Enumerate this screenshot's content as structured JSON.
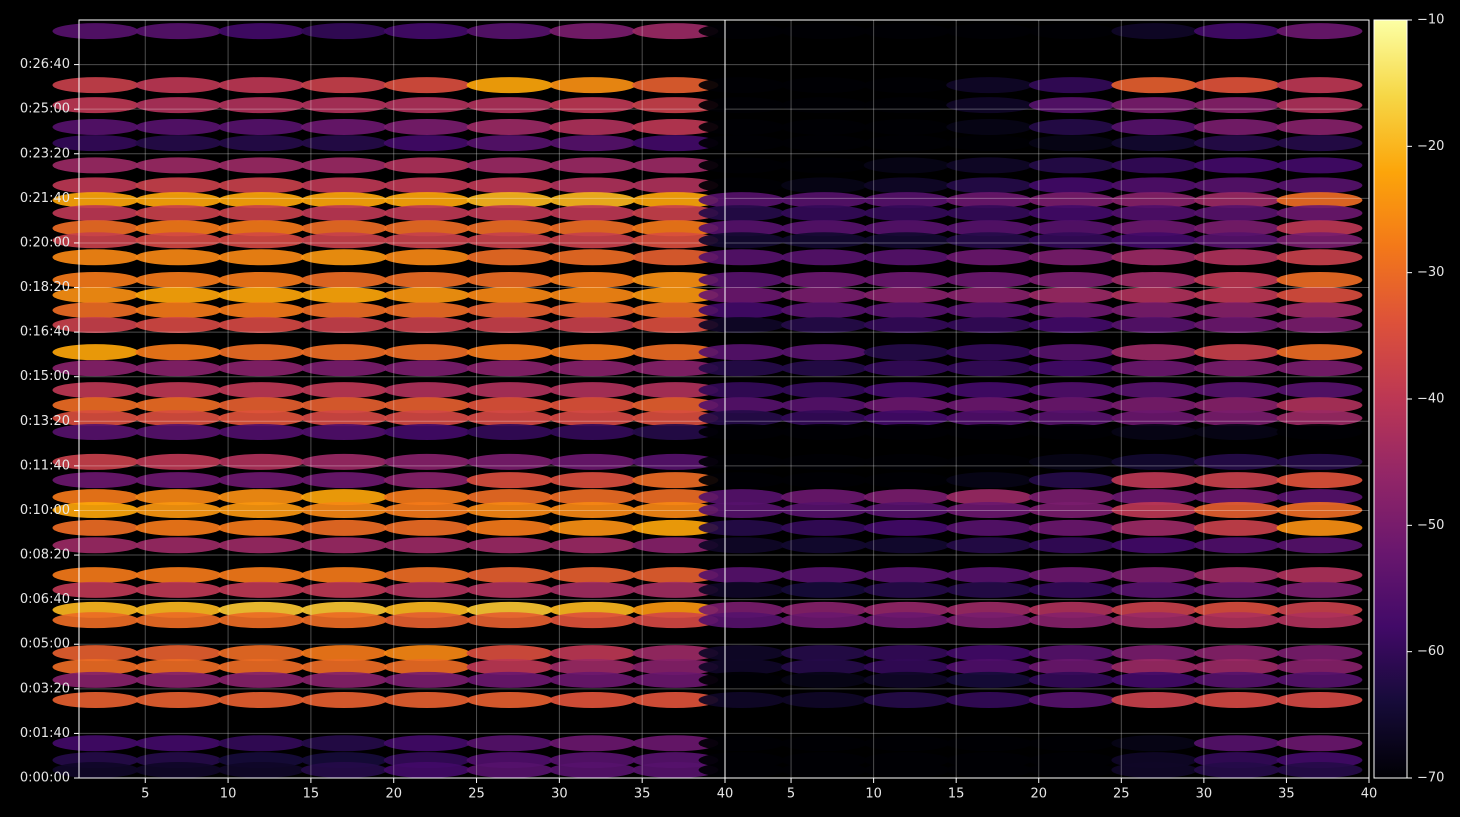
{
  "chart_data": {
    "type": "heatmap",
    "colormap": "inferno",
    "grid": true,
    "x": [
      2,
      7,
      12,
      17,
      22,
      27,
      32,
      37
    ],
    "y": [
      1675,
      1554,
      1509,
      1460,
      1424,
      1374,
      1329,
      1296,
      1267,
      1233,
      1206,
      1168,
      1117,
      1083,
      1049,
      1016,
      955,
      919,
      870,
      836,
      807,
      776,
      709,
      668,
      630,
      601,
      561,
      522,
      455,
      422,
      377,
      354,
      280,
      249,
      220,
      175,
      78,
      40,
      18
    ],
    "xlim": [
      1,
      40
    ],
    "xticks": [
      5,
      10,
      15,
      20,
      25,
      30,
      35,
      40
    ],
    "ylim": [
      0,
      1700
    ],
    "yticks": [
      {
        "value": 0,
        "label": "0:00:00"
      },
      {
        "value": 100,
        "label": "0:01:40"
      },
      {
        "value": 200,
        "label": "0:03:20"
      },
      {
        "value": 300,
        "label": "0:05:00"
      },
      {
        "value": 400,
        "label": "0:06:40"
      },
      {
        "value": 500,
        "label": "0:08:20"
      },
      {
        "value": 600,
        "label": "0:10:00"
      },
      {
        "value": 700,
        "label": "0:11:40"
      },
      {
        "value": 800,
        "label": "0:13:20"
      },
      {
        "value": 900,
        "label": "0:15:00"
      },
      {
        "value": 1000,
        "label": "0:16:40"
      },
      {
        "value": 1100,
        "label": "0:18:20"
      },
      {
        "value": 1200,
        "label": "0:20:00"
      },
      {
        "value": 1300,
        "label": "0:21:40"
      },
      {
        "value": 1400,
        "label": "0:23:20"
      },
      {
        "value": 1500,
        "label": "0:25:00"
      },
      {
        "value": 1600,
        "label": "0:26:40"
      }
    ],
    "clim": [
      -70,
      -10
    ],
    "cticks": [
      {
        "value": -70,
        "label": "−70"
      },
      {
        "value": -60,
        "label": "−60"
      },
      {
        "value": -50,
        "label": "−50"
      },
      {
        "value": -40,
        "label": "−40"
      },
      {
        "value": -30,
        "label": "−30"
      },
      {
        "value": -20,
        "label": "−20"
      },
      {
        "value": -10,
        "label": "−10"
      }
    ],
    "panels": [
      {
        "values": [
          [
            -55,
            -55,
            -58,
            -60,
            -58,
            -55,
            -50,
            -45
          ],
          [
            -38,
            -40,
            -40,
            -38,
            -35,
            -22,
            -25,
            -32
          ],
          [
            -40,
            -42,
            -42,
            -42,
            -42,
            -42,
            -40,
            -38
          ],
          [
            -55,
            -55,
            -55,
            -52,
            -50,
            -45,
            -42,
            -40
          ],
          [
            -60,
            -62,
            -62,
            -62,
            -58,
            -55,
            -55,
            -58
          ],
          [
            -45,
            -45,
            -45,
            -45,
            -42,
            -45,
            -45,
            -45
          ],
          [
            -40,
            -38,
            -38,
            -40,
            -40,
            -40,
            -42,
            -42
          ],
          [
            -22,
            -22,
            -22,
            -22,
            -22,
            -20,
            -20,
            -22
          ],
          [
            -40,
            -38,
            -38,
            -40,
            -40,
            -40,
            -40,
            -38
          ],
          [
            -30,
            -28,
            -28,
            -30,
            -30,
            -30,
            -30,
            -28
          ],
          [
            -38,
            -36,
            -36,
            -38,
            -38,
            -38,
            -38,
            -35
          ],
          [
            -26,
            -26,
            -26,
            -24,
            -26,
            -30,
            -30,
            -32
          ],
          [
            -28,
            -28,
            -28,
            -30,
            -30,
            -30,
            -28,
            -25
          ],
          [
            -25,
            -22,
            -22,
            -22,
            -24,
            -26,
            -26,
            -24
          ],
          [
            -30,
            -28,
            -28,
            -30,
            -30,
            -32,
            -32,
            -30
          ],
          [
            -38,
            -36,
            -36,
            -38,
            -38,
            -38,
            -38,
            -35
          ],
          [
            -22,
            -28,
            -30,
            -30,
            -30,
            -28,
            -28,
            -30
          ],
          [
            -48,
            -48,
            -48,
            -50,
            -50,
            -48,
            -48,
            -48
          ],
          [
            -40,
            -40,
            -40,
            -40,
            -42,
            -42,
            -42,
            -42
          ],
          [
            -30,
            -30,
            -32,
            -32,
            -32,
            -34,
            -34,
            -32
          ],
          [
            -35,
            -35,
            -34,
            -36,
            -36,
            -36,
            -36,
            -35
          ],
          [
            -55,
            -55,
            -56,
            -56,
            -58,
            -60,
            -60,
            -62
          ],
          [
            -38,
            -40,
            -42,
            -45,
            -48,
            -50,
            -52,
            -55
          ],
          [
            -52,
            -52,
            -52,
            -52,
            -48,
            -35,
            -35,
            -30
          ],
          [
            -28,
            -26,
            -25,
            -22,
            -28,
            -30,
            -30,
            -30
          ],
          [
            -22,
            -24,
            -24,
            -26,
            -28,
            -26,
            -26,
            -26
          ],
          [
            -30,
            -28,
            -28,
            -30,
            -30,
            -28,
            -25,
            -22
          ],
          [
            -45,
            -45,
            -45,
            -45,
            -45,
            -45,
            -45,
            -48
          ],
          [
            -28,
            -28,
            -28,
            -28,
            -30,
            -32,
            -32,
            -32
          ],
          [
            -40,
            -40,
            -40,
            -40,
            -42,
            -42,
            -44,
            -44
          ],
          [
            -20,
            -20,
            -18,
            -18,
            -20,
            -18,
            -20,
            -24
          ],
          [
            -30,
            -30,
            -30,
            -30,
            -32,
            -32,
            -34,
            -36
          ],
          [
            -32,
            -32,
            -30,
            -28,
            -26,
            -35,
            -40,
            -45
          ],
          [
            -30,
            -30,
            -30,
            -30,
            -30,
            -40,
            -45,
            -48
          ],
          [
            -48,
            -48,
            -48,
            -48,
            -50,
            -52,
            -52,
            -52
          ],
          [
            -32,
            -32,
            -32,
            -32,
            -32,
            -32,
            -34,
            -34
          ],
          [
            -58,
            -58,
            -60,
            -62,
            -58,
            -55,
            -52,
            -52
          ],
          [
            -62,
            -62,
            -64,
            -64,
            -60,
            -56,
            -55,
            -55
          ],
          [
            -66,
            -66,
            -66,
            -62,
            -58,
            -55,
            -55,
            -55
          ]
        ]
      },
      {
        "values": [
          [
            -70,
            -70,
            -70,
            -70,
            -70,
            -66,
            -58,
            -52
          ],
          [
            -70,
            -70,
            -70,
            -66,
            -60,
            -32,
            -34,
            -40
          ],
          [
            -70,
            -70,
            -70,
            -66,
            -55,
            -50,
            -48,
            -42
          ],
          [
            -70,
            -70,
            -70,
            -68,
            -62,
            -55,
            -50,
            -48
          ],
          [
            -70,
            -70,
            -70,
            -70,
            -68,
            -65,
            -62,
            -62
          ],
          [
            -70,
            -70,
            -68,
            -66,
            -62,
            -60,
            -58,
            -58
          ],
          [
            -70,
            -68,
            -66,
            -62,
            -58,
            -56,
            -55,
            -55
          ],
          [
            -55,
            -55,
            -55,
            -52,
            -50,
            -48,
            -45,
            -30
          ],
          [
            -62,
            -60,
            -60,
            -60,
            -58,
            -56,
            -55,
            -52
          ],
          [
            -55,
            -55,
            -55,
            -55,
            -55,
            -52,
            -50,
            -40
          ],
          [
            -65,
            -65,
            -65,
            -62,
            -60,
            -58,
            -55,
            -50
          ],
          [
            -55,
            -55,
            -55,
            -52,
            -50,
            -45,
            -42,
            -38
          ],
          [
            -55,
            -52,
            -52,
            -52,
            -50,
            -45,
            -40,
            -30
          ],
          [
            -52,
            -50,
            -48,
            -48,
            -45,
            -42,
            -40,
            -35
          ],
          [
            -58,
            -55,
            -55,
            -55,
            -52,
            -50,
            -48,
            -45
          ],
          [
            -66,
            -62,
            -60,
            -60,
            -58,
            -55,
            -52,
            -50
          ],
          [
            -55,
            -55,
            -62,
            -60,
            -55,
            -45,
            -38,
            -30
          ],
          [
            -62,
            -62,
            -60,
            -60,
            -58,
            -52,
            -50,
            -50
          ],
          [
            -60,
            -60,
            -58,
            -58,
            -56,
            -55,
            -55,
            -55
          ],
          [
            -55,
            -55,
            -52,
            -52,
            -52,
            -50,
            -48,
            -42
          ],
          [
            -62,
            -60,
            -58,
            -56,
            -55,
            -52,
            -50,
            -45
          ],
          [
            -70,
            -70,
            -70,
            -70,
            -70,
            -68,
            -68,
            -70
          ],
          [
            -70,
            -70,
            -70,
            -70,
            -68,
            -65,
            -62,
            -62
          ],
          [
            -70,
            -70,
            -70,
            -68,
            -62,
            -40,
            -38,
            -34
          ],
          [
            -55,
            -52,
            -50,
            -45,
            -50,
            -52,
            -52,
            -55
          ],
          [
            -55,
            -55,
            -55,
            -52,
            -50,
            -40,
            -32,
            -30
          ],
          [
            -62,
            -60,
            -58,
            -55,
            -52,
            -45,
            -38,
            -25
          ],
          [
            -66,
            -65,
            -65,
            -62,
            -60,
            -58,
            -56,
            -55
          ],
          [
            -55,
            -55,
            -55,
            -55,
            -52,
            -50,
            -45,
            -42
          ],
          [
            -66,
            -64,
            -62,
            -62,
            -60,
            -55,
            -52,
            -50
          ],
          [
            -50,
            -48,
            -46,
            -45,
            -42,
            -38,
            -35,
            -38
          ],
          [
            -55,
            -52,
            -52,
            -50,
            -48,
            -45,
            -42,
            -42
          ],
          [
            -66,
            -62,
            -60,
            -58,
            -55,
            -50,
            -48,
            -50
          ],
          [
            -66,
            -62,
            -60,
            -56,
            -52,
            -45,
            -45,
            -48
          ],
          [
            -70,
            -68,
            -66,
            -64,
            -60,
            -58,
            -55,
            -55
          ],
          [
            -66,
            -66,
            -62,
            -60,
            -55,
            -38,
            -36,
            -36
          ],
          [
            -70,
            -70,
            -70,
            -70,
            -70,
            -68,
            -55,
            -52
          ],
          [
            -70,
            -70,
            -70,
            -70,
            -70,
            -66,
            -60,
            -58
          ],
          [
            -70,
            -70,
            -70,
            -70,
            -70,
            -66,
            -62,
            -62
          ]
        ]
      }
    ]
  }
}
